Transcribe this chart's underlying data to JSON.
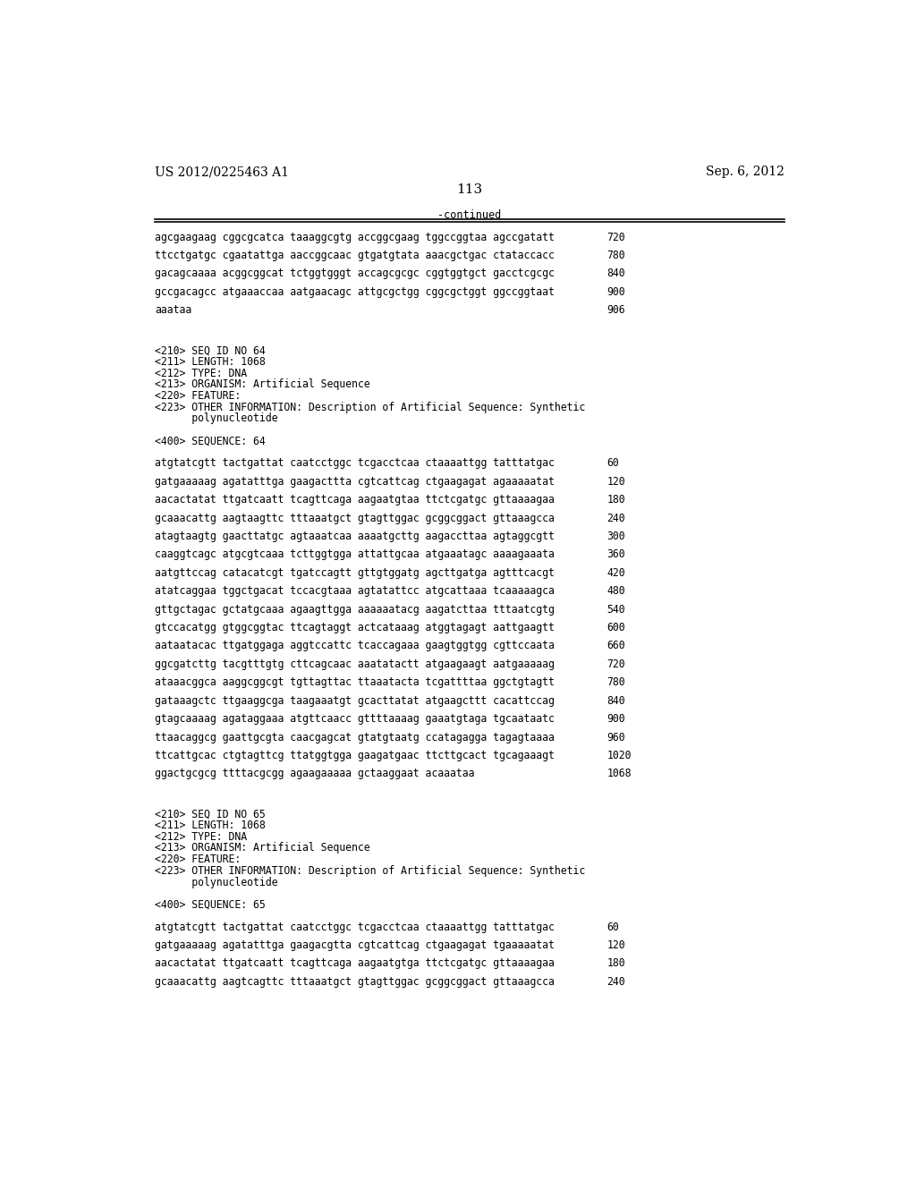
{
  "header_left": "US 2012/0225463 A1",
  "header_right": "Sep. 6, 2012",
  "page_number": "113",
  "continued_label": "-continued",
  "background_color": "#ffffff",
  "text_color": "#000000",
  "sections": [
    {
      "type": "sequence_data",
      "lines": [
        {
          "seq": "agcgaagaag cggcgcatca taaaggcgtg accggcgaag tggccggtaa agccgatatt",
          "num": "720"
        },
        {
          "seq": "ttcctgatgc cgaatattga aaccggcaac gtgatgtata aaacgctgac ctataccacc",
          "num": "780"
        },
        {
          "seq": "gacagcaaaa acggcggcat tctggtgggt accagcgcgc cggtggtgct gacctcgcgc",
          "num": "840"
        },
        {
          "seq": "gccgacagcc atgaaaccaa aatgaacagc attgcgctgg cggcgctggt ggccggtaat",
          "num": "900"
        },
        {
          "seq": "aaataa",
          "num": "906"
        }
      ]
    },
    {
      "type": "spacer",
      "lines": 2
    },
    {
      "type": "metadata",
      "lines": [
        "<210> SEQ ID NO 64",
        "<211> LENGTH: 1068",
        "<212> TYPE: DNA",
        "<213> ORGANISM: Artificial Sequence",
        "<220> FEATURE:",
        "<223> OTHER INFORMATION: Description of Artificial Sequence: Synthetic",
        "      polynucleotide"
      ]
    },
    {
      "type": "spacer",
      "lines": 1
    },
    {
      "type": "metadata",
      "lines": [
        "<400> SEQUENCE: 64"
      ]
    },
    {
      "type": "spacer",
      "lines": 1
    },
    {
      "type": "sequence_data",
      "lines": [
        {
          "seq": "atgtatcgtt tactgattat caatcctggc tcgacctcaa ctaaaattgg tatttatgac",
          "num": "60"
        },
        {
          "seq": "gatgaaaaag agatatttga gaagacttta cgtcattcag ctgaagagat agaaaaatat",
          "num": "120"
        },
        {
          "seq": "aacactatat ttgatcaatt tcagttcaga aagaatgtaa ttctcgatgc gttaaaagaa",
          "num": "180"
        },
        {
          "seq": "gcaaacattg aagtaagttc tttaaatgct gtagttggac gcggcggact gttaaagcca",
          "num": "240"
        },
        {
          "seq": "atagtaagtg gaacttatgc agtaaatcaa aaaatgcttg aagaccttaa agtaggcgtt",
          "num": "300"
        },
        {
          "seq": "caaggtcagc atgcgtcaaa tcttggtgga attattgcaa atgaaatagc aaaagaaata",
          "num": "360"
        },
        {
          "seq": "aatgttccag catacatcgt tgatccagtt gttgtggatg agcttgatga agtttcacgt",
          "num": "420"
        },
        {
          "seq": "atatcaggaa tggctgacat tccacgtaaa agtatattcc atgcattaaa tcaaaaagca",
          "num": "480"
        },
        {
          "seq": "gttgctagac gctatgcaaa agaagttgga aaaaaatacg aagatcttaa tttaatcgtg",
          "num": "540"
        },
        {
          "seq": "gtccacatgg gtggcggtac ttcagtaggt actcataaag atggtagagt aattgaagtt",
          "num": "600"
        },
        {
          "seq": "aataatacac ttgatggaga aggtccattc tcaccagaaa gaagtggtgg cgttccaata",
          "num": "660"
        },
        {
          "seq": "ggcgatcttg tacgtttgtg cttcagcaac aaatatactt atgaagaagt aatgaaaaag",
          "num": "720"
        },
        {
          "seq": "ataaacggca aaggcggcgt tgttagttac ttaaatacta tcgattttaa ggctgtagtt",
          "num": "780"
        },
        {
          "seq": "gataaagctc ttgaaggcga taagaaatgt gcacttatat atgaagcttt cacattccag",
          "num": "840"
        },
        {
          "seq": "gtagcaaaag agataggaaa atgttcaacc gttttaaaag gaaatgtaga tgcaataatc",
          "num": "900"
        },
        {
          "seq": "ttaacaggcg gaattgcgta caacgagcat gtatgtaatg ccatagagga tagagtaaaa",
          "num": "960"
        },
        {
          "seq": "ttcattgcac ctgtagttcg ttatggtgga gaagatgaac ttcttgcact tgcagaaagt",
          "num": "1020"
        },
        {
          "seq": "ggactgcgcg ttttacgcgg agaagaaaaa gctaaggaat acaaataa",
          "num": "1068"
        }
      ]
    },
    {
      "type": "spacer",
      "lines": 2
    },
    {
      "type": "metadata",
      "lines": [
        "<210> SEQ ID NO 65",
        "<211> LENGTH: 1068",
        "<212> TYPE: DNA",
        "<213> ORGANISM: Artificial Sequence",
        "<220> FEATURE:",
        "<223> OTHER INFORMATION: Description of Artificial Sequence: Synthetic",
        "      polynucleotide"
      ]
    },
    {
      "type": "spacer",
      "lines": 1
    },
    {
      "type": "metadata",
      "lines": [
        "<400> SEQUENCE: 65"
      ]
    },
    {
      "type": "spacer",
      "lines": 1
    },
    {
      "type": "sequence_data",
      "lines": [
        {
          "seq": "atgtatcgtt tactgattat caatcctggc tcgacctcaa ctaaaattgg tatttatgac",
          "num": "60"
        },
        {
          "seq": "gatgaaaaag agatatttga gaagacgtta cgtcattcag ctgaagagat tgaaaaatat",
          "num": "120"
        },
        {
          "seq": "aacactatat ttgatcaatt tcagttcaga aagaatgtga ttctcgatgc gttaaaagaa",
          "num": "180"
        },
        {
          "seq": "gcaaacattg aagtcagttc tttaaatgct gtagttggac gcggcggact gttaaagcca",
          "num": "240"
        }
      ]
    }
  ]
}
